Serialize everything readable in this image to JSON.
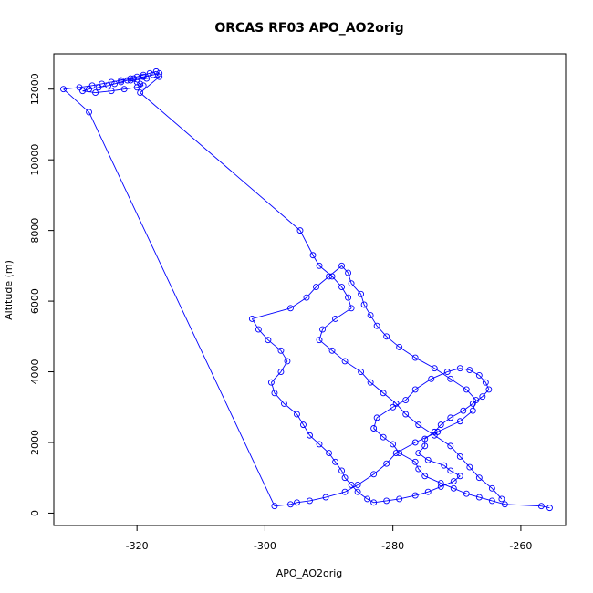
{
  "chart_data": {
    "type": "line",
    "title": "ORCAS RF03 APO_AO2orig",
    "xlabel": "APO_AO2orig",
    "ylabel": "Altitude (m)",
    "xlim": [
      -333,
      -253
    ],
    "ylim": [
      -350,
      13000
    ],
    "xticks": [
      -320,
      -300,
      -280,
      -260
    ],
    "yticks": [
      0,
      2000,
      4000,
      6000,
      8000,
      10000,
      12000
    ],
    "grid": false,
    "line_color": "#0000ff",
    "marker": "open-circle",
    "x": [
      -255.5,
      -256.8,
      -262.5,
      -264.5,
      -266.5,
      -268.5,
      -270.5,
      -272.5,
      -275.0,
      -276.0,
      -276.5,
      -279.0,
      -280.0,
      -281.5,
      -283.0,
      -282.5,
      -280.0,
      -278.0,
      -276.5,
      -274.0,
      -271.5,
      -269.5,
      -268.0,
      -266.5,
      -265.5,
      -265.0,
      -266.0,
      -267.5,
      -269.0,
      -271.0,
      -272.5,
      -273.5,
      -275.0,
      -275.0,
      -276.0,
      -274.5,
      -272.0,
      -271.0,
      -269.5,
      -270.5,
      -272.5,
      -274.5,
      -276.5,
      -279.0,
      -281.0,
      -283.0,
      -284.0,
      -285.5,
      -286.5,
      -287.5,
      -288.0,
      -289.0,
      -290.0,
      -291.5,
      -293.0,
      -294.0,
      -295.0,
      -297.0,
      -298.5,
      -299.0,
      -297.5,
      -296.5,
      -297.5,
      -299.5,
      -301.0,
      -302.0,
      -296.0,
      -293.5,
      -292.0,
      -290.0,
      -288.0,
      -287.0,
      -286.5,
      -285.0,
      -284.5,
      -283.5,
      -282.5,
      -281.0,
      -279.0,
      -276.5,
      -273.5,
      -271.0,
      -268.5,
      -267.0,
      -267.5,
      -269.5,
      -273.0,
      -276.5,
      -279.5,
      -281.0,
      -283.0,
      -285.5,
      -287.5,
      -290.5,
      -293.0,
      -295.0,
      -296.0,
      -298.5,
      -327.5,
      -331.5,
      -329.0,
      -327.0,
      -325.5,
      -324.0,
      -322.5,
      -321.0,
      -320.0,
      -319.0,
      -318.0,
      -317.0,
      -316.5,
      -317.5,
      -319.0,
      -320.5,
      -321.5,
      -322.5,
      -323.5,
      -324.5,
      -326.0,
      -327.5,
      -328.5,
      -326.5,
      -324.0,
      -322.0,
      -320.0,
      -319.0,
      -319.5,
      -320.0,
      -321.0,
      -318.5,
      -316.5,
      -319.5,
      -294.5,
      -292.5,
      -291.5,
      -289.5,
      -288.0,
      -287.0,
      -286.5,
      -289.0,
      -291.0,
      -291.5,
      -289.5,
      -287.5,
      -285.0,
      -283.5,
      -281.5,
      -279.5,
      -278.0,
      -276.0,
      -273.5,
      -271.0,
      -269.5,
      -268.0,
      -266.5,
      -264.5,
      -263.0
    ],
    "y": [
      150,
      200,
      250,
      350,
      450,
      550,
      700,
      850,
      1050,
      1250,
      1450,
      1700,
      1950,
      2150,
      2400,
      2700,
      3000,
      3200,
      3500,
      3800,
      4000,
      4100,
      4050,
      3900,
      3700,
      3500,
      3300,
      3100,
      2900,
      2700,
      2500,
      2300,
      2100,
      1900,
      1700,
      1500,
      1350,
      1200,
      1050,
      900,
      750,
      600,
      500,
      400,
      350,
      300,
      400,
      600,
      800,
      1000,
      1200,
      1450,
      1700,
      1950,
      2200,
      2500,
      2800,
      3100,
      3400,
      3700,
      4000,
      4300,
      4600,
      4900,
      5200,
      5500,
      5800,
      6100,
      6400,
      6700,
      7000,
      6800,
      6500,
      6200,
      5900,
      5600,
      5300,
      5000,
      4700,
      4400,
      4100,
      3800,
      3500,
      3200,
      2900,
      2600,
      2300,
      2000,
      1700,
      1400,
      1100,
      800,
      600,
      450,
      350,
      300,
      250,
      200,
      11350,
      12000,
      12050,
      12100,
      12150,
      12200,
      12250,
      12300,
      12350,
      12400,
      12450,
      12500,
      12450,
      12400,
      12350,
      12300,
      12250,
      12200,
      12150,
      12100,
      12050,
      12000,
      11950,
      11900,
      11950,
      12000,
      12050,
      12100,
      12150,
      12200,
      12250,
      12300,
      12350,
      11900,
      8000,
      7300,
      7000,
      6700,
      6400,
      6100,
      5800,
      5500,
      5200,
      4900,
      4600,
      4300,
      4000,
      3700,
      3400,
      3100,
      2800,
      2500,
      2200,
      1900,
      1600,
      1300,
      1000,
      700,
      400
    ]
  }
}
